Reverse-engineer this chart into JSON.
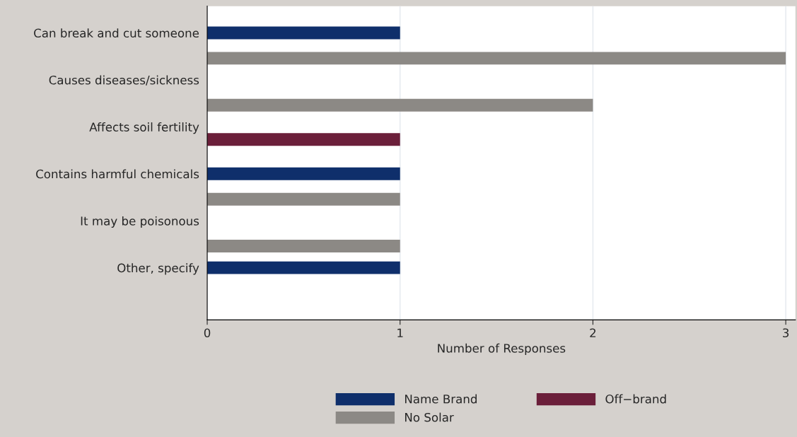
{
  "chart_data": {
    "type": "bar",
    "orientation": "horizontal",
    "xlabel": "Number of Responses",
    "categories": [
      "Can break and cut someone",
      "Causes diseases/sickness",
      "Affects soil fertility",
      "Contains harmful chemicals",
      "It may be poisonous",
      "Other, specify"
    ],
    "series": [
      {
        "name": "Name Brand",
        "color": "#0f2f6b",
        "values": [
          1,
          null,
          null,
          1,
          null,
          1
        ]
      },
      {
        "name": "Off−brand",
        "color": "#6b1f3a",
        "values": [
          null,
          null,
          1,
          null,
          null,
          null
        ]
      },
      {
        "name": "No Solar",
        "color": "#8c8985",
        "values": [
          3,
          2,
          null,
          1,
          1,
          null
        ]
      }
    ],
    "xlim": [
      0,
      3.05
    ],
    "xticks": [
      0,
      1,
      2,
      3
    ],
    "grid": "x",
    "legend": "bottom"
  }
}
